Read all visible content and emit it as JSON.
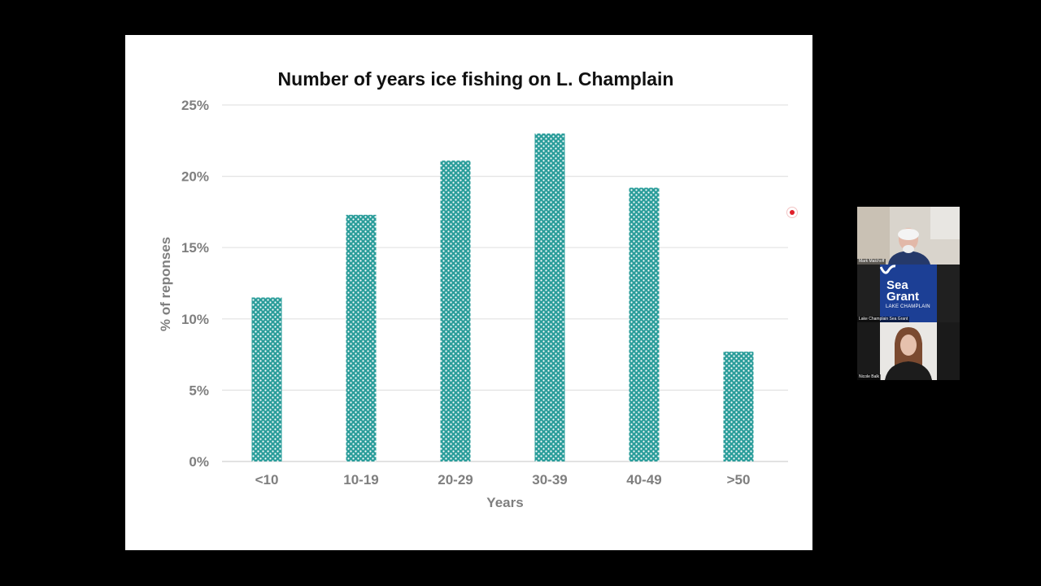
{
  "chart_data": {
    "type": "bar",
    "title": "Number of years ice fishing on L. Champlain",
    "xlabel": "Years",
    "ylabel": "% of reponses",
    "categories": [
      "<10",
      "10-19",
      "20-29",
      "30-39",
      "40-49",
      ">50"
    ],
    "values": [
      11.5,
      17.3,
      21.1,
      23.0,
      19.2,
      7.7
    ],
    "ylim": [
      0,
      25
    ],
    "yticks": [
      0,
      5,
      10,
      15,
      20,
      25
    ],
    "ytick_labels": [
      "0%",
      "5%",
      "10%",
      "15%",
      "20%",
      "25%"
    ],
    "grid": true,
    "legend": "none",
    "bar_color": "#2a9d9a",
    "bar_pattern": "dotted"
  },
  "participants": [
    {
      "name": "Mark Malchoff"
    },
    {
      "name": "Lake Champlain Sea Grant",
      "logo": {
        "line1": "Sea",
        "line2": "Grant",
        "sub": "LAKE CHAMPLAIN"
      }
    },
    {
      "name": "Nicole Balk"
    }
  ],
  "recording_indicator": {
    "icon": "record-icon",
    "color": "#e0202a"
  }
}
